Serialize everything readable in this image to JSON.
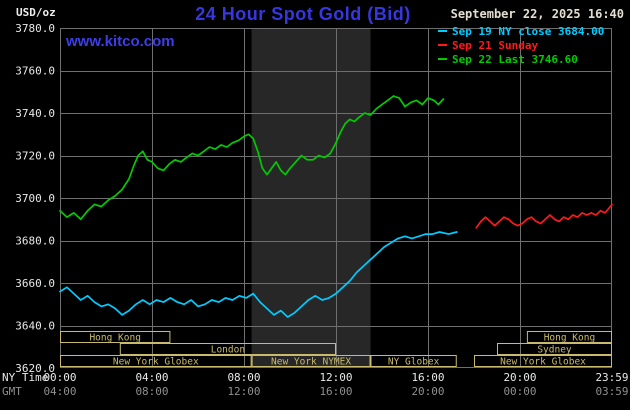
{
  "header": {
    "units": "USD/oz",
    "title": "24 Hour Spot Gold (Bid)",
    "datetime": "September 22, 2025 16:40",
    "watermark": "www.kitco.com"
  },
  "legend": [
    {
      "icon": "dash-icon",
      "label": "Sep 19 NY close 3684.00",
      "color": "#00ccff"
    },
    {
      "icon": "dash-icon",
      "label": "Sep 21 Sunday",
      "color": "#ff1a1a"
    },
    {
      "icon": "dash-icon",
      "label": "Sep 22 Last 3746.60",
      "color": "#00cc00"
    }
  ],
  "axes": {
    "x_row1_label": "NY Time",
    "x_row2_label": "GMT",
    "x_ticks": [
      {
        "hour": 0,
        "ny": "00:00",
        "gmt": "04:00"
      },
      {
        "hour": 4,
        "ny": "04:00",
        "gmt": "08:00"
      },
      {
        "hour": 8,
        "ny": "08:00",
        "gmt": "12:00"
      },
      {
        "hour": 12,
        "ny": "12:00",
        "gmt": "16:00"
      },
      {
        "hour": 16,
        "ny": "16:00",
        "gmt": "20:00"
      },
      {
        "hour": 20,
        "ny": "20:00",
        "gmt": "00:00"
      },
      {
        "hour": 24,
        "ny": "23:59",
        "gmt": "03:59"
      }
    ],
    "y_ticks": [
      {
        "value": 3780,
        "label": "3780.0"
      },
      {
        "value": 3760,
        "label": "3760.0"
      },
      {
        "value": 3740,
        "label": "3740.0"
      },
      {
        "value": 3720,
        "label": "3720.0"
      },
      {
        "value": 3700,
        "label": "3700.0"
      },
      {
        "value": 3680,
        "label": "3680.0"
      },
      {
        "value": 3660,
        "label": "3660.0"
      },
      {
        "value": 3640,
        "label": "3640.0"
      },
      {
        "value": 3620,
        "label": "3620.0"
      }
    ]
  },
  "sessions": [
    {
      "row": 0,
      "start_hour": 0,
      "end_hour": 4.8,
      "label": "Hong Kong"
    },
    {
      "row": 0,
      "start_hour": 20.3,
      "end_hour": 24,
      "label": "Hong Kong"
    },
    {
      "row": 1,
      "start_hour": 2.6,
      "end_hour": 12,
      "label": "London"
    },
    {
      "row": 1,
      "start_hour": 19,
      "end_hour": 24,
      "label": "Sydney"
    },
    {
      "row": 2,
      "start_hour": 0,
      "end_hour": 8.33,
      "label": "New York Globex"
    },
    {
      "row": 2,
      "start_hour": 8.33,
      "end_hour": 13.5,
      "label": "New York NYMEX"
    },
    {
      "row": 2,
      "start_hour": 13.5,
      "end_hour": 17.25,
      "label": "NY Globex"
    },
    {
      "row": 2,
      "start_hour": 18,
      "end_hour": 24,
      "label": "New York Globex"
    }
  ],
  "colors": {
    "background": "#000000",
    "title_blue": "#3737e0",
    "link_blue": "#3e3ee8",
    "datetime_text": "#e4ded2",
    "grid": "#6f6f6f",
    "axis_text": "#e8e8e8",
    "axis_text_secondary": "#909090",
    "session": "#c9ba6d",
    "highlight_band": "#272727",
    "series_friday": "#00ccff",
    "series_sunday": "#ff1a1a",
    "series_today": "#00cc00"
  },
  "chart_data": {
    "type": "line",
    "title": "24 Hour Spot Gold (Bid)",
    "xlabel": "NY Time",
    "ylabel": "USD/oz",
    "xlim": [
      0,
      24
    ],
    "ylim": [
      3620,
      3780
    ],
    "grid": true,
    "legend_position": "top-right",
    "highlight_band": {
      "start_hour": 8.33,
      "end_hour": 13.5
    },
    "series": [
      {
        "id": "sep19-friday",
        "name": "Sep 19 NY close 3684.00",
        "color": "#00ccff",
        "close": 3684.0,
        "points": [
          [
            0,
            3656
          ],
          [
            0.3,
            3658
          ],
          [
            0.6,
            3655
          ],
          [
            0.9,
            3652
          ],
          [
            1.2,
            3654
          ],
          [
            1.5,
            3651
          ],
          [
            1.8,
            3649
          ],
          [
            2.1,
            3650
          ],
          [
            2.4,
            3648
          ],
          [
            2.7,
            3645
          ],
          [
            3,
            3647
          ],
          [
            3.3,
            3650
          ],
          [
            3.6,
            3652
          ],
          [
            3.9,
            3650
          ],
          [
            4.2,
            3652
          ],
          [
            4.5,
            3651
          ],
          [
            4.8,
            3653
          ],
          [
            5.1,
            3651
          ],
          [
            5.4,
            3650
          ],
          [
            5.7,
            3652
          ],
          [
            6,
            3649
          ],
          [
            6.3,
            3650
          ],
          [
            6.6,
            3652
          ],
          [
            6.9,
            3651
          ],
          [
            7.2,
            3653
          ],
          [
            7.5,
            3652
          ],
          [
            7.8,
            3654
          ],
          [
            8.1,
            3653
          ],
          [
            8.4,
            3655
          ],
          [
            8.7,
            3651
          ],
          [
            9,
            3648
          ],
          [
            9.3,
            3645
          ],
          [
            9.6,
            3647
          ],
          [
            9.9,
            3644
          ],
          [
            10.2,
            3646
          ],
          [
            10.5,
            3649
          ],
          [
            10.8,
            3652
          ],
          [
            11.1,
            3654
          ],
          [
            11.4,
            3652
          ],
          [
            11.7,
            3653
          ],
          [
            12,
            3655
          ],
          [
            12.3,
            3658
          ],
          [
            12.6,
            3661
          ],
          [
            12.9,
            3665
          ],
          [
            13.2,
            3668
          ],
          [
            13.5,
            3671
          ],
          [
            13.8,
            3674
          ],
          [
            14.1,
            3677
          ],
          [
            14.4,
            3679
          ],
          [
            14.7,
            3681
          ],
          [
            15,
            3682
          ],
          [
            15.3,
            3681
          ],
          [
            15.6,
            3682
          ],
          [
            15.9,
            3683
          ],
          [
            16.2,
            3683
          ],
          [
            16.5,
            3684
          ],
          [
            16.9,
            3683
          ],
          [
            17.25,
            3684
          ]
        ]
      },
      {
        "id": "sep21-sunday",
        "name": "Sep 21 Sunday",
        "color": "#ff1a1a",
        "points": [
          [
            18.1,
            3686
          ],
          [
            18.3,
            3689
          ],
          [
            18.5,
            3691
          ],
          [
            18.7,
            3689
          ],
          [
            18.9,
            3687
          ],
          [
            19.1,
            3689
          ],
          [
            19.3,
            3691
          ],
          [
            19.5,
            3690
          ],
          [
            19.7,
            3688
          ],
          [
            19.9,
            3687
          ],
          [
            20.1,
            3688
          ],
          [
            20.3,
            3690
          ],
          [
            20.5,
            3691
          ],
          [
            20.7,
            3689
          ],
          [
            20.9,
            3688
          ],
          [
            21.1,
            3690
          ],
          [
            21.3,
            3692
          ],
          [
            21.5,
            3690
          ],
          [
            21.7,
            3689
          ],
          [
            21.9,
            3691
          ],
          [
            22.1,
            3690
          ],
          [
            22.3,
            3692
          ],
          [
            22.5,
            3691
          ],
          [
            22.7,
            3693
          ],
          [
            22.9,
            3692
          ],
          [
            23.1,
            3693
          ],
          [
            23.3,
            3692
          ],
          [
            23.5,
            3694
          ],
          [
            23.7,
            3693
          ],
          [
            23.85,
            3695
          ],
          [
            24,
            3697
          ]
        ]
      },
      {
        "id": "sep22-today",
        "name": "Sep 22 Last 3746.60",
        "color": "#00cc00",
        "last": 3746.6,
        "points": [
          [
            0,
            3694
          ],
          [
            0.3,
            3691
          ],
          [
            0.6,
            3693
          ],
          [
            0.9,
            3690
          ],
          [
            1.2,
            3694
          ],
          [
            1.5,
            3697
          ],
          [
            1.8,
            3696
          ],
          [
            2.1,
            3699
          ],
          [
            2.4,
            3701
          ],
          [
            2.7,
            3704
          ],
          [
            3,
            3709
          ],
          [
            3.2,
            3715
          ],
          [
            3.4,
            3720
          ],
          [
            3.6,
            3722
          ],
          [
            3.8,
            3718
          ],
          [
            4,
            3717
          ],
          [
            4.25,
            3714
          ],
          [
            4.5,
            3713
          ],
          [
            4.75,
            3716
          ],
          [
            5,
            3718
          ],
          [
            5.25,
            3717
          ],
          [
            5.5,
            3719
          ],
          [
            5.75,
            3721
          ],
          [
            6,
            3720
          ],
          [
            6.25,
            3722
          ],
          [
            6.5,
            3724
          ],
          [
            6.75,
            3723
          ],
          [
            7,
            3725
          ],
          [
            7.25,
            3724
          ],
          [
            7.5,
            3726
          ],
          [
            7.75,
            3727
          ],
          [
            8,
            3729
          ],
          [
            8.2,
            3730
          ],
          [
            8.4,
            3728
          ],
          [
            8.6,
            3722
          ],
          [
            8.8,
            3714
          ],
          [
            9,
            3711
          ],
          [
            9.2,
            3714
          ],
          [
            9.4,
            3717
          ],
          [
            9.6,
            3713
          ],
          [
            9.8,
            3711
          ],
          [
            10,
            3714
          ],
          [
            10.25,
            3717
          ],
          [
            10.5,
            3720
          ],
          [
            10.75,
            3718
          ],
          [
            11,
            3718
          ],
          [
            11.25,
            3720
          ],
          [
            11.5,
            3719
          ],
          [
            11.75,
            3721
          ],
          [
            12,
            3726
          ],
          [
            12.2,
            3731
          ],
          [
            12.4,
            3735
          ],
          [
            12.6,
            3737
          ],
          [
            12.8,
            3736
          ],
          [
            13,
            3738
          ],
          [
            13.25,
            3740
          ],
          [
            13.5,
            3739
          ],
          [
            13.75,
            3742
          ],
          [
            14,
            3744
          ],
          [
            14.25,
            3746
          ],
          [
            14.5,
            3748
          ],
          [
            14.75,
            3747
          ],
          [
            15,
            3743
          ],
          [
            15.25,
            3745
          ],
          [
            15.5,
            3746
          ],
          [
            15.75,
            3744
          ],
          [
            16,
            3747
          ],
          [
            16.25,
            3746
          ],
          [
            16.45,
            3744
          ],
          [
            16.67,
            3746.6
          ]
        ]
      }
    ]
  }
}
